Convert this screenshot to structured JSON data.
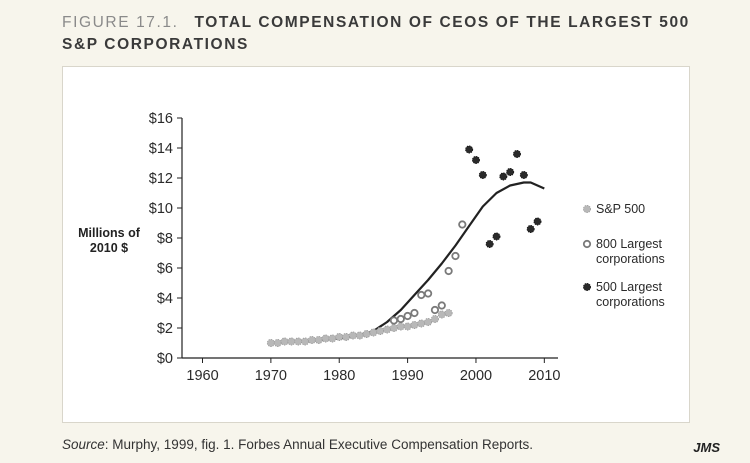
{
  "figure": {
    "number": "FIGURE 17.1.",
    "title": "TOTAL COMPENSATION OF CEOS OF THE LARGEST 500 S&P CORPORATIONS"
  },
  "source": {
    "label": "Source",
    "text": ": Murphy, 1999, fig. 1. Forbes Annual Executive Compensation Reports."
  },
  "signature": "JMS",
  "colors": {
    "line": "#222222",
    "sp500": "#b8b8b8",
    "largest800": "#7a7a7a",
    "largest500": "#2a2a2a"
  },
  "chart_data": {
    "type": "scatter",
    "ylabel": "Millions of 2010 $",
    "ylabel_lines": [
      "Millions of",
      "2010 $"
    ],
    "xlim": [
      1957,
      2012
    ],
    "ylim": [
      0,
      16
    ],
    "x_ticks": [
      1960,
      1970,
      1980,
      1990,
      2000,
      2010
    ],
    "y_ticks": [
      0,
      2,
      4,
      6,
      8,
      10,
      12,
      14,
      16
    ],
    "y_tick_labels": [
      "$0",
      "$2",
      "$4",
      "$6",
      "$8",
      "$10",
      "$12",
      "$14",
      "$16"
    ],
    "grid": false,
    "legend_position": "right",
    "legend": [
      {
        "key": "sp500",
        "lines": [
          "S&P 500"
        ]
      },
      {
        "key": "largest800",
        "lines": [
          "800 Largest",
          "corporations"
        ]
      },
      {
        "key": "largest500",
        "lines": [
          "500 Largest",
          "corporations"
        ]
      }
    ],
    "series": [
      {
        "name": "S&P 500",
        "key": "sp500",
        "points": [
          [
            1970,
            1.0
          ],
          [
            1971,
            1.0
          ],
          [
            1972,
            1.1
          ],
          [
            1973,
            1.1
          ],
          [
            1974,
            1.1
          ],
          [
            1975,
            1.1
          ],
          [
            1976,
            1.2
          ],
          [
            1977,
            1.2
          ],
          [
            1978,
            1.3
          ],
          [
            1979,
            1.3
          ],
          [
            1980,
            1.4
          ],
          [
            1981,
            1.4
          ],
          [
            1982,
            1.5
          ],
          [
            1983,
            1.5
          ],
          [
            1984,
            1.6
          ],
          [
            1985,
            1.7
          ],
          [
            1986,
            1.8
          ],
          [
            1987,
            1.9
          ],
          [
            1988,
            2.0
          ],
          [
            1989,
            2.1
          ],
          [
            1990,
            2.1
          ],
          [
            1991,
            2.2
          ],
          [
            1992,
            2.3
          ],
          [
            1993,
            2.4
          ],
          [
            1994,
            2.6
          ],
          [
            1995,
            2.9
          ],
          [
            1996,
            3.0
          ]
        ]
      },
      {
        "name": "800 Largest corporations",
        "key": "largest800",
        "points": [
          [
            1988,
            2.5
          ],
          [
            1989,
            2.6
          ],
          [
            1990,
            2.8
          ],
          [
            1991,
            3.0
          ],
          [
            1992,
            4.2
          ],
          [
            1993,
            4.3
          ],
          [
            1994,
            3.2
          ],
          [
            1995,
            3.5
          ],
          [
            1996,
            5.8
          ],
          [
            1997,
            6.8
          ],
          [
            1998,
            8.9
          ]
        ]
      },
      {
        "name": "500 Largest corporations",
        "key": "largest500",
        "points": [
          [
            1999,
            13.9
          ],
          [
            2000,
            13.2
          ],
          [
            2001,
            12.2
          ],
          [
            2002,
            7.6
          ],
          [
            2003,
            8.1
          ],
          [
            2004,
            12.1
          ],
          [
            2005,
            12.4
          ],
          [
            2006,
            13.6
          ],
          [
            2007,
            12.2
          ],
          [
            2008,
            8.6
          ],
          [
            2009,
            9.1
          ]
        ]
      },
      {
        "name": "Trend",
        "key": "trend",
        "type": "line",
        "points": [
          [
            1970,
            1.0
          ],
          [
            1975,
            1.1
          ],
          [
            1980,
            1.3
          ],
          [
            1983,
            1.5
          ],
          [
            1985,
            1.8
          ],
          [
            1987,
            2.4
          ],
          [
            1989,
            3.2
          ],
          [
            1991,
            4.2
          ],
          [
            1993,
            5.2
          ],
          [
            1995,
            6.3
          ],
          [
            1997,
            7.5
          ],
          [
            1999,
            8.8
          ],
          [
            2001,
            10.1
          ],
          [
            2003,
            11.0
          ],
          [
            2005,
            11.5
          ],
          [
            2007,
            11.7
          ],
          [
            2008,
            11.7
          ],
          [
            2010,
            11.3
          ]
        ]
      }
    ]
  }
}
